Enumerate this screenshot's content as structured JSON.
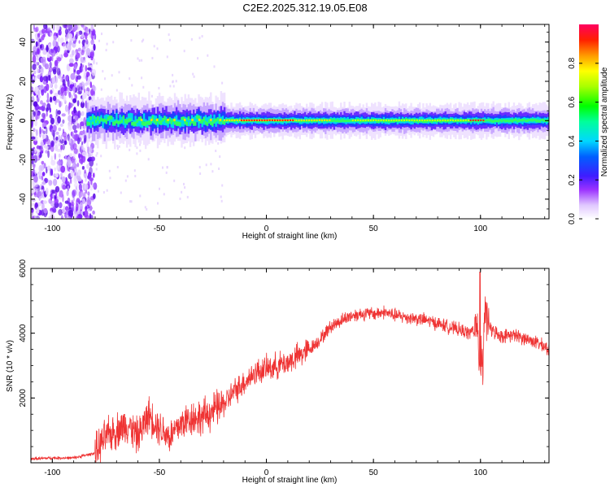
{
  "title": "C2E2.2025.312.19.05.E08",
  "chart_data": [
    {
      "type": "heatmap",
      "xlabel": "Height of straight line (km)",
      "ylabel": "Frequency (Hz)",
      "xlim": [
        -110,
        132
      ],
      "ylim": [
        -50,
        49
      ],
      "x_ticks": [
        "-100",
        "-50",
        "0",
        "50",
        "100"
      ],
      "y_ticks": [
        "-40",
        "-20",
        "0",
        "20",
        "40"
      ],
      "colorbar": {
        "label": "Normalized spectral amplitude",
        "range": [
          0,
          1
        ],
        "ticks": [
          "0.0",
          "0.2",
          "0.4",
          "0.6",
          "0.8"
        ]
      },
      "ridge": {
        "center_frequency_hz": 0,
        "x_start_km": -84,
        "description_x": [
          -110,
          -84,
          -50,
          -20,
          0,
          50,
          100,
          132
        ]
      }
    },
    {
      "type": "line",
      "xlabel": "Height of straight line (km)",
      "ylabel": "SNR (10 * v/v)",
      "xlim": [
        -110,
        132
      ],
      "ylim": [
        0,
        6000
      ],
      "x_ticks": [
        "-100",
        "-50",
        "0",
        "50",
        "100"
      ],
      "y_ticks": [
        "2000",
        "4000",
        "6000"
      ],
      "color": "#ef3333",
      "x": [
        -110,
        -100,
        -90,
        -80,
        -75,
        -70,
        -65,
        -60,
        -55,
        -50,
        -45,
        -40,
        -35,
        -30,
        -25,
        -20,
        -15,
        -10,
        -5,
        0,
        5,
        10,
        15,
        20,
        25,
        30,
        35,
        40,
        45,
        50,
        55,
        60,
        65,
        70,
        75,
        80,
        85,
        90,
        95,
        98,
        100,
        102,
        105,
        110,
        115,
        120,
        125,
        132
      ],
      "y": [
        120,
        150,
        150,
        300,
        800,
        1000,
        1200,
        800,
        1500,
        1100,
        800,
        1200,
        1400,
        1400,
        1600,
        1800,
        2200,
        2500,
        2800,
        2900,
        3000,
        3100,
        3300,
        3500,
        3800,
        4200,
        4400,
        4550,
        4600,
        4600,
        4650,
        4550,
        4500,
        4450,
        4400,
        4300,
        4200,
        4100,
        4000,
        4200,
        3000,
        4600,
        4100,
        3900,
        3950,
        3850,
        3750,
        3500
      ]
    }
  ]
}
